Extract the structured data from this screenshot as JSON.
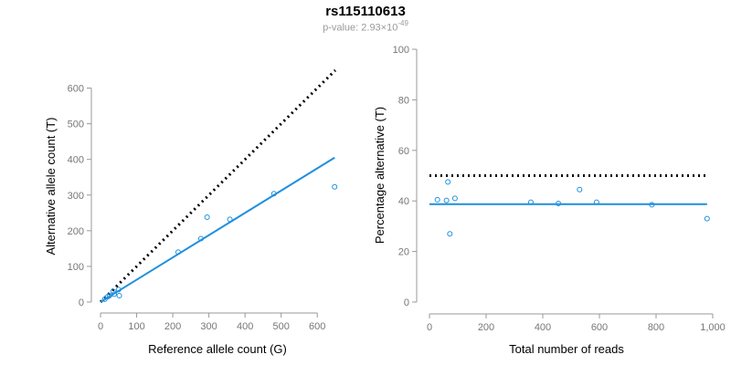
{
  "title": "rs115110613",
  "subtitle_prefix": "p-value: 2.93×10",
  "subtitle_exp": "-49",
  "chart_data": [
    {
      "type": "scatter",
      "xlabel": "Reference allele count (G)",
      "ylabel": "Alternative allele count (T)",
      "xlim": [
        0,
        650
      ],
      "ylim": [
        0,
        650
      ],
      "xticks": [
        "0",
        "100",
        "200",
        "300",
        "400",
        "500",
        "600"
      ],
      "yticks": [
        "0",
        "100",
        "200",
        "300",
        "400",
        "500",
        "600"
      ],
      "points": [
        {
          "x": 12,
          "y": 8
        },
        {
          "x": 20,
          "y": 15
        },
        {
          "x": 25,
          "y": 18
        },
        {
          "x": 35,
          "y": 30
        },
        {
          "x": 38,
          "y": 22
        },
        {
          "x": 50,
          "y": 35
        },
        {
          "x": 52,
          "y": 18
        },
        {
          "x": 215,
          "y": 140
        },
        {
          "x": 278,
          "y": 178
        },
        {
          "x": 295,
          "y": 238
        },
        {
          "x": 358,
          "y": 232
        },
        {
          "x": 480,
          "y": 304
        },
        {
          "x": 648,
          "y": 323
        }
      ],
      "fit_line": {
        "x": [
          0,
          648
        ],
        "y": [
          0,
          405
        ]
      },
      "reference_line": {
        "x": [
          0,
          650
        ],
        "y": [
          0,
          650
        ]
      },
      "grid": false,
      "colors": {
        "points": "#1e8fde",
        "fit": "#1e8fde",
        "reference": "#000000"
      }
    },
    {
      "type": "scatter",
      "xlabel": "Total number of reads",
      "ylabel": "Percentage alternative (T)",
      "xlim": [
        0,
        1000
      ],
      "ylim": [
        0,
        100
      ],
      "xticks": [
        "0",
        "200",
        "400",
        "600",
        "800",
        "1,000"
      ],
      "yticks": [
        "0",
        "20",
        "40",
        "60",
        "80",
        "100"
      ],
      "points": [
        {
          "x": 28,
          "y": 40.5
        },
        {
          "x": 60,
          "y": 40.2
        },
        {
          "x": 65,
          "y": 47.5
        },
        {
          "x": 72,
          "y": 27
        },
        {
          "x": 90,
          "y": 41
        },
        {
          "x": 358,
          "y": 39.5
        },
        {
          "x": 455,
          "y": 39
        },
        {
          "x": 530,
          "y": 44.5
        },
        {
          "x": 590,
          "y": 39.5
        },
        {
          "x": 785,
          "y": 38.5
        },
        {
          "x": 980,
          "y": 33
        }
      ],
      "fit_line": {
        "x": [
          0,
          980
        ],
        "y": [
          38.7,
          38.7
        ]
      },
      "reference_line": {
        "x": [
          0,
          980
        ],
        "y": [
          50,
          50
        ]
      },
      "grid": false,
      "colors": {
        "points": "#1e8fde",
        "fit": "#1e8fde",
        "reference": "#000000"
      }
    }
  ]
}
